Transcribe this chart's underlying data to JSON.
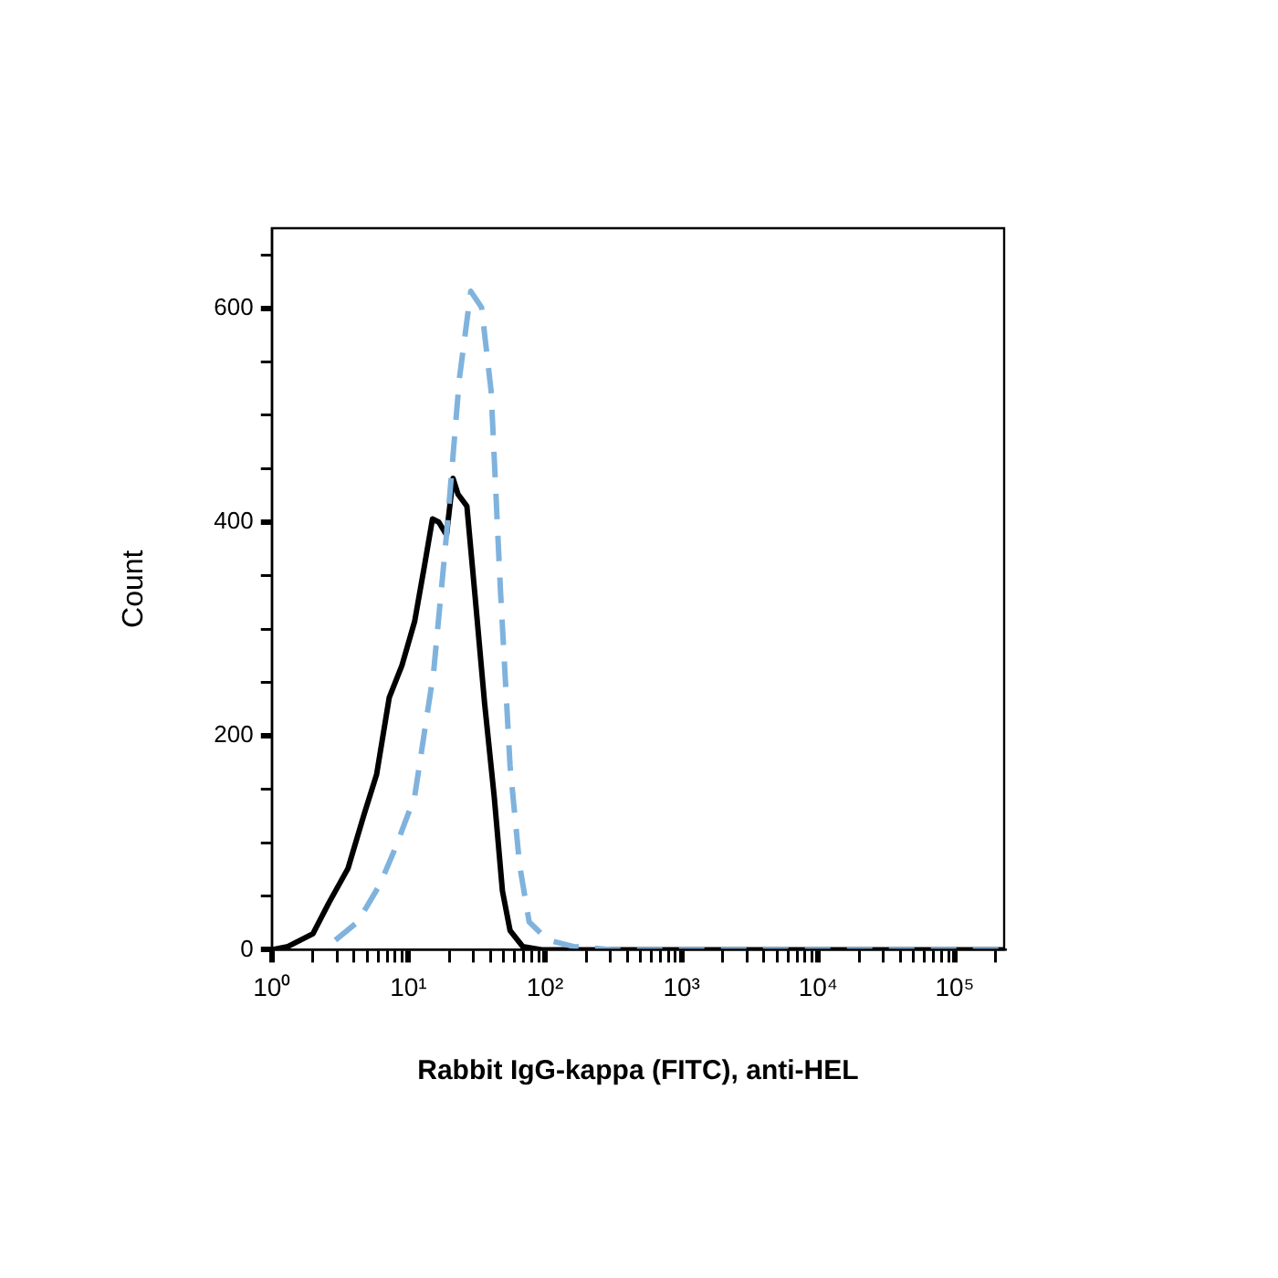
{
  "chart_data": {
    "type": "line",
    "xlabel": "Rabbit IgG-kappa (FITC), anti-HEL",
    "ylabel": "Count",
    "log": "x",
    "grid": false,
    "legend": false,
    "marker": "none",
    "xlim": [
      1,
      230000
    ],
    "ylim": [
      0,
      675
    ],
    "xticks": [
      {
        "value": 1,
        "label": "10⁰"
      },
      {
        "value": 2,
        "label": null
      },
      {
        "value": 3,
        "label": null
      },
      {
        "value": 4,
        "label": null
      },
      {
        "value": 5,
        "label": null
      },
      {
        "value": 6,
        "label": null
      },
      {
        "value": 7,
        "label": null
      },
      {
        "value": 8,
        "label": null
      },
      {
        "value": 9,
        "label": null
      },
      {
        "value": 10,
        "label": "10¹"
      },
      {
        "value": 20,
        "label": null
      },
      {
        "value": 30,
        "label": null
      },
      {
        "value": 40,
        "label": null
      },
      {
        "value": 50,
        "label": null
      },
      {
        "value": 60,
        "label": null
      },
      {
        "value": 70,
        "label": null
      },
      {
        "value": 80,
        "label": null
      },
      {
        "value": 90,
        "label": null
      },
      {
        "value": 100,
        "label": "10²"
      },
      {
        "value": 200,
        "label": null
      },
      {
        "value": 300,
        "label": null
      },
      {
        "value": 400,
        "label": null
      },
      {
        "value": 500,
        "label": null
      },
      {
        "value": 600,
        "label": null
      },
      {
        "value": 700,
        "label": null
      },
      {
        "value": 800,
        "label": null
      },
      {
        "value": 900,
        "label": null
      },
      {
        "value": 1000,
        "label": "10³"
      },
      {
        "value": 2000,
        "label": null
      },
      {
        "value": 3000,
        "label": null
      },
      {
        "value": 4000,
        "label": null
      },
      {
        "value": 5000,
        "label": null
      },
      {
        "value": 6000,
        "label": null
      },
      {
        "value": 7000,
        "label": null
      },
      {
        "value": 8000,
        "label": null
      },
      {
        "value": 9000,
        "label": null
      },
      {
        "value": 10000,
        "label": "10⁴"
      },
      {
        "value": 20000,
        "label": null
      },
      {
        "value": 30000,
        "label": null
      },
      {
        "value": 40000,
        "label": null
      },
      {
        "value": 50000,
        "label": null
      },
      {
        "value": 60000,
        "label": null
      },
      {
        "value": 70000,
        "label": null
      },
      {
        "value": 80000,
        "label": null
      },
      {
        "value": 90000,
        "label": null
      },
      {
        "value": 100000,
        "label": "10⁵"
      },
      {
        "value": 200000,
        "label": null
      }
    ],
    "yticks": [
      0,
      {
        "value": 50,
        "label": null
      },
      {
        "value": 100,
        "label": null
      },
      {
        "value": 150,
        "label": null
      },
      200,
      {
        "value": 250,
        "label": null
      },
      {
        "value": 300,
        "label": null
      },
      {
        "value": 350,
        "label": null
      },
      400,
      {
        "value": 450,
        "label": null
      },
      {
        "value": 500,
        "label": null
      },
      {
        "value": 550,
        "label": null
      },
      600,
      {
        "value": 650,
        "label": null
      }
    ],
    "series": [
      {
        "color": "#000000",
        "line_style": "solid",
        "x": [
          1,
          1.31,
          2.0,
          2.62,
          3.61,
          4.72,
          5.85,
          7.24,
          8.97,
          11.1,
          13.1,
          15.0,
          16.7,
          19.0,
          21.2,
          23.1,
          26.8,
          30.8,
          36.1,
          42.5,
          48.8,
          55.5,
          68.7,
          94.8,
          1000,
          10000,
          100000,
          230000
        ],
        "values": [
          0,
          3,
          15,
          44,
          76,
          126,
          164,
          236,
          266,
          307,
          359,
          403,
          400,
          388,
          441,
          426,
          415,
          330,
          231,
          143,
          55,
          18,
          3,
          0,
          0,
          0,
          0,
          0
        ]
      },
      {
        "color": "#7fb3dd",
        "line_style": "dashed",
        "x": [
          2.92,
          4.25,
          6.18,
          8.07,
          11.1,
          15.3,
          19.0,
          23.6,
          28.6,
          34.3,
          40.3,
          47.2,
          55.5,
          65.2,
          76.6,
          105,
          162,
          308,
          1000,
          10000,
          100000,
          230000
        ],
        "values": [
          9,
          26,
          61,
          96,
          143,
          260,
          388,
          534,
          616,
          601,
          523,
          336,
          172,
          79,
          26,
          9,
          3,
          0,
          0,
          0,
          0,
          0
        ]
      }
    ]
  }
}
